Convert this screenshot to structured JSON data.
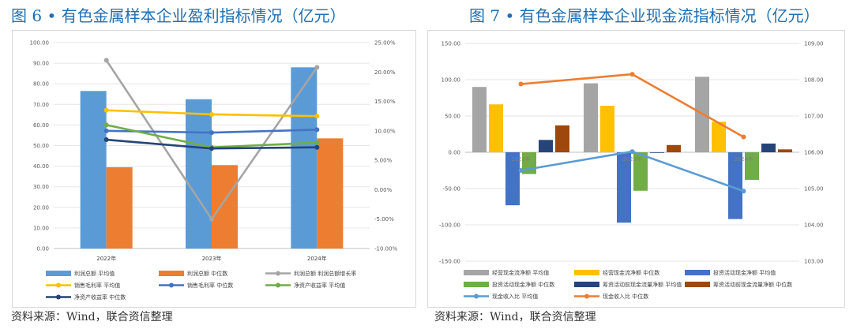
{
  "left": {
    "title": "图 6 • 有色金属样本企业盈利指标情况（亿元）",
    "source": "资料来源：Wind，联合资信整理"
  },
  "right": {
    "title": "图 7 • 有色金属样本企业现金流指标情况（亿元）",
    "source": "资料来源：Wind，联合资信整理"
  },
  "chart_data": [
    {
      "type": "bar",
      "categories": [
        "2022年",
        "2023年",
        "2024年"
      ],
      "y_left": {
        "min": 0,
        "max": 100,
        "ticks": [
          "0.00",
          "10.00",
          "20.00",
          "30.00",
          "40.00",
          "50.00",
          "60.00",
          "70.00",
          "80.00",
          "90.00",
          "100.00"
        ]
      },
      "y_right": {
        "min": -10,
        "max": 25,
        "ticks": [
          "-10.00%",
          "-5.00%",
          "0.00%",
          "5.00%",
          "10.00%",
          "15.00%",
          "20.00%",
          "25.00%"
        ]
      },
      "series": [
        {
          "name": "利润总额 平均值",
          "kind": "bar",
          "axis": "left",
          "color": "#5b9bd5",
          "values": [
            76.5,
            72.5,
            88.0
          ]
        },
        {
          "name": "利润总额 中位数",
          "kind": "bar",
          "axis": "left",
          "color": "#ed7d31",
          "values": [
            39.5,
            40.5,
            53.5
          ]
        },
        {
          "name": "利润总额 利润总额增长率",
          "kind": "line",
          "axis": "right",
          "color": "#a5a5a5",
          "values": [
            22.0,
            -5.0,
            20.8
          ]
        },
        {
          "name": "销售毛利率 平均值",
          "kind": "line",
          "axis": "right",
          "color": "#ffc000",
          "values": [
            13.5,
            12.8,
            12.5
          ]
        },
        {
          "name": "销售毛利率 中位数",
          "kind": "line",
          "axis": "right",
          "color": "#4472c4",
          "values": [
            10.0,
            9.7,
            10.2
          ]
        },
        {
          "name": "净资产收益率 平均值",
          "kind": "line",
          "axis": "right",
          "color": "#70ad47",
          "values": [
            11.0,
            7.2,
            8.0
          ]
        },
        {
          "name": "净资产收益率 中位数",
          "kind": "line",
          "axis": "right",
          "color": "#264478",
          "values": [
            8.5,
            7.0,
            7.2
          ]
        }
      ]
    },
    {
      "type": "bar",
      "categories": [
        "2022年",
        "2023年",
        "2024年"
      ],
      "y_left": {
        "min": -150,
        "max": 150,
        "ticks": [
          "-150.00",
          "-100.00",
          "-50.00",
          "0.00",
          "50.00",
          "100.00",
          "150.00"
        ]
      },
      "y_right": {
        "min": 103,
        "max": 109,
        "ticks": [
          "103.00",
          "104.00",
          "105.00",
          "106.00",
          "107.00",
          "108.00",
          "109.00"
        ]
      },
      "series": [
        {
          "name": "经营现金流净额 平均值",
          "kind": "bar",
          "axis": "left",
          "color": "#a5a5a5",
          "values": [
            90,
            95,
            104
          ]
        },
        {
          "name": "经营现金流净额 中位数",
          "kind": "bar",
          "axis": "left",
          "color": "#ffc000",
          "values": [
            66,
            64,
            42
          ]
        },
        {
          "name": "投资活动现金净额 平均值",
          "kind": "bar",
          "axis": "left",
          "color": "#4472c4",
          "values": [
            -73,
            -97,
            -92
          ]
        },
        {
          "name": "投资活动现金净额 中位数",
          "kind": "bar",
          "axis": "left",
          "color": "#70ad47",
          "values": [
            -30,
            -53,
            -38
          ]
        },
        {
          "name": "筹资活动前现金流量净额 平均值",
          "kind": "bar",
          "axis": "left",
          "color": "#264478",
          "values": [
            17,
            0,
            12
          ]
        },
        {
          "name": "筹资活动前现金流量净额 中位数",
          "kind": "bar",
          "axis": "left",
          "color": "#9e480e",
          "values": [
            37,
            10,
            4
          ]
        },
        {
          "name": "现金收入比 平均值",
          "kind": "line",
          "axis": "right",
          "color": "#5b9bd5",
          "values": [
            105.5,
            106.02,
            104.93
          ]
        },
        {
          "name": "现金收入比 中位数",
          "kind": "line",
          "axis": "right",
          "color": "#ed7d31",
          "values": [
            107.88,
            108.15,
            106.42
          ]
        }
      ]
    }
  ]
}
